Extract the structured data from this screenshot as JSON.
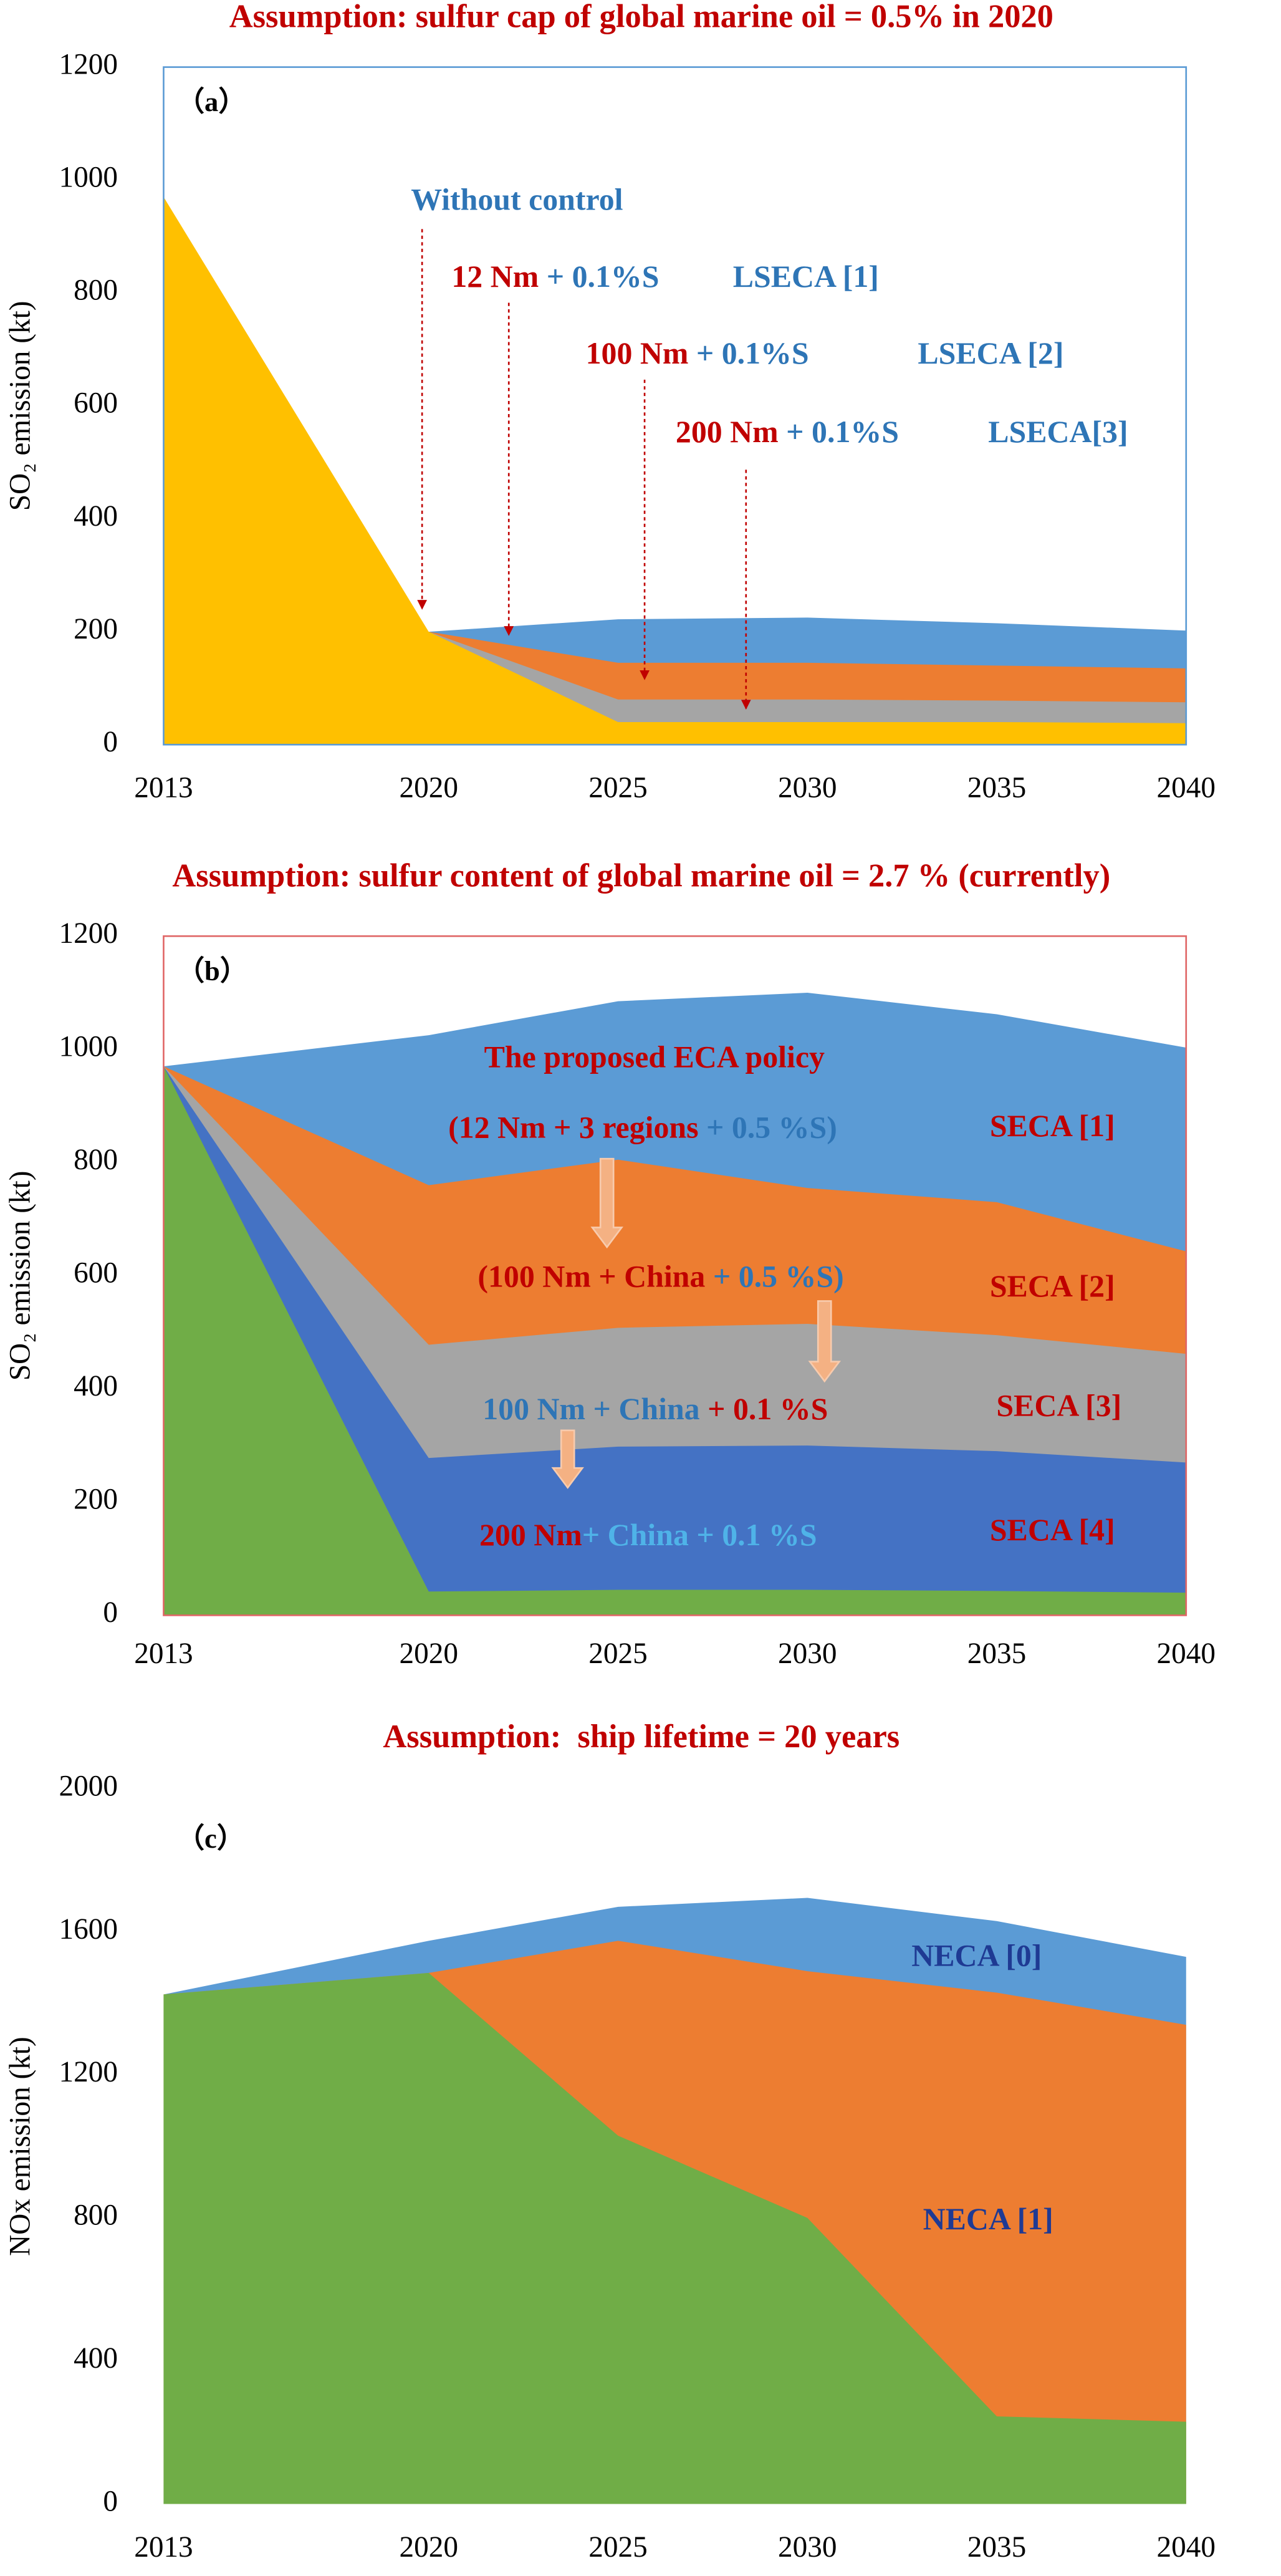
{
  "chart_data": [
    {
      "type": "area",
      "title": "Assumption: sulfur cap of global marine oil = 0.5% in 2020",
      "panel_label": "（a）",
      "y_label": "SO₂ emission (kt)",
      "frame_color": "#5b9bd5",
      "x": [
        2013,
        2020,
        2025,
        2030,
        2035,
        2040
      ],
      "xlim": [
        2013,
        2040
      ],
      "xticks": [
        2013,
        2020,
        2025,
        2030,
        2035,
        2040
      ],
      "ylim": [
        0,
        1200
      ],
      "yticks": [
        0,
        200,
        400,
        600,
        800,
        1000,
        1200
      ],
      "series": [
        {
          "color": "#5b9bd5",
          "values": [
            null,
            200,
            222,
            225,
            215,
            202
          ]
        },
        {
          "color": "#ed7d31",
          "values": [
            null,
            200,
            145,
            145,
            140,
            135
          ]
        },
        {
          "color": "#a5a5a5",
          "values": [
            null,
            200,
            80,
            80,
            78,
            75
          ]
        },
        {
          "color": "#ffc000",
          "values": [
            970,
            200,
            40,
            40,
            40,
            38
          ]
        }
      ],
      "annotations": [
        {
          "segments": [
            {
              "text": "Without control",
              "color": "#2e75b6"
            }
          ]
        },
        {
          "segments": [
            {
              "text": "12 Nm",
              "color": "#c00000"
            },
            {
              "text": " + 0.1%S",
              "color": "#2e75b6"
            }
          ]
        },
        {
          "segments": [
            {
              "text": "LSECA [1]",
              "color": "#2e75b6"
            }
          ]
        },
        {
          "segments": [
            {
              "text": "100 Nm",
              "color": "#c00000"
            },
            {
              "text": " + 0.1%S",
              "color": "#2e75b6"
            }
          ]
        },
        {
          "segments": [
            {
              "text": "LSECA [2]",
              "color": "#2e75b6"
            }
          ]
        },
        {
          "segments": [
            {
              "text": "200 Nm",
              "color": "#c00000"
            },
            {
              "text": " + 0.1%S",
              "color": "#2e75b6"
            }
          ]
        },
        {
          "segments": [
            {
              "text": "LSECA[3]",
              "color": "#2e75b6"
            }
          ]
        }
      ]
    },
    {
      "type": "area",
      "title": "Assumption: sulfur content of global marine oil = 2.7 % (currently)",
      "panel_label": "（b）",
      "y_label": "SO₂ emission (kt)",
      "frame_color": "#e06666",
      "x": [
        2013,
        2020,
        2025,
        2030,
        2035,
        2040
      ],
      "xlim": [
        2013,
        2040
      ],
      "xticks": [
        2013,
        2020,
        2025,
        2030,
        2035,
        2040
      ],
      "ylim": [
        0,
        1200
      ],
      "yticks": [
        0,
        200,
        400,
        600,
        800,
        1000,
        1200
      ],
      "series": [
        {
          "color": "#5b9bd5",
          "values": [
            970,
            1025,
            1085,
            1100,
            1062,
            1003
          ]
        },
        {
          "color": "#ed7d31",
          "values": [
            970,
            760,
            805,
            755,
            730,
            643
          ]
        },
        {
          "color": "#a5a5a5",
          "values": [
            970,
            478,
            508,
            515,
            495,
            462
          ]
        },
        {
          "color": "#4472c4",
          "values": [
            970,
            278,
            298,
            300,
            290,
            270
          ]
        },
        {
          "color": "#70ad47",
          "values": [
            970,
            42,
            45,
            45,
            43,
            40
          ]
        }
      ],
      "annotations": [
        {
          "segments": [
            {
              "text": "The proposed ECA policy",
              "color": "#c00000"
            }
          ]
        },
        {
          "segments": [
            {
              "text": "(12 Nm + 3 regions",
              "color": "#c00000"
            },
            {
              "text": " + 0.5 %S)",
              "color": "#2e75b6"
            }
          ]
        },
        {
          "segments": [
            {
              "text": "SECA [1]",
              "color": "#c00000"
            }
          ]
        },
        {
          "segments": [
            {
              "text": "(100 Nm + China",
              "color": "#c00000"
            },
            {
              "text": " + 0.5 %S)",
              "color": "#2e75b6"
            }
          ]
        },
        {
          "segments": [
            {
              "text": "SECA [2]",
              "color": "#c00000"
            }
          ]
        },
        {
          "segments": [
            {
              "text": "100 Nm",
              "color": "#2e75b6"
            },
            {
              "text": " + China",
              "color": "#2e75b6"
            },
            {
              "text": " + 0.1 %S",
              "color": "#c00000"
            }
          ]
        },
        {
          "segments": [
            {
              "text": "SECA [3]",
              "color": "#c00000"
            }
          ]
        },
        {
          "segments": [
            {
              "text": "200 Nm",
              "color": "#c00000"
            },
            {
              "text": "+ China",
              "color": "#4fb3e8"
            },
            {
              "text": " + 0.1 %S",
              "color": "#4fb3e8"
            }
          ]
        },
        {
          "segments": [
            {
              "text": "SECA [4]",
              "color": "#c00000"
            }
          ]
        }
      ]
    },
    {
      "type": "area",
      "title": "Assumption:  ship lifetime = 20 years",
      "panel_label": "（c）",
      "y_label": "NOx emission (kt)",
      "x": [
        2013,
        2020,
        2025,
        2030,
        2035,
        2040
      ],
      "xlim": [
        2013,
        2040
      ],
      "xticks": [
        2013,
        2020,
        2025,
        2030,
        2035,
        2040
      ],
      "ylim": [
        0,
        2000
      ],
      "yticks": [
        0,
        400,
        800,
        1200,
        1600,
        2000
      ],
      "series": [
        {
          "color": "#5b9bd5",
          "values": [
            1425,
            1575,
            1670,
            1695,
            1630,
            1530
          ]
        },
        {
          "color": "#ed7d31",
          "values": [
            1425,
            1485,
            1575,
            1490,
            1430,
            1340
          ]
        },
        {
          "color": "#70ad47",
          "values": [
            1425,
            1485,
            1030,
            800,
            245,
            230
          ]
        }
      ],
      "annotations": [
        {
          "segments": [
            {
              "text": "NECA [0]",
              "color": "#1f3a93"
            }
          ]
        },
        {
          "segments": [
            {
              "text": "NECA [1]",
              "color": "#1f3a93"
            }
          ]
        }
      ]
    }
  ]
}
